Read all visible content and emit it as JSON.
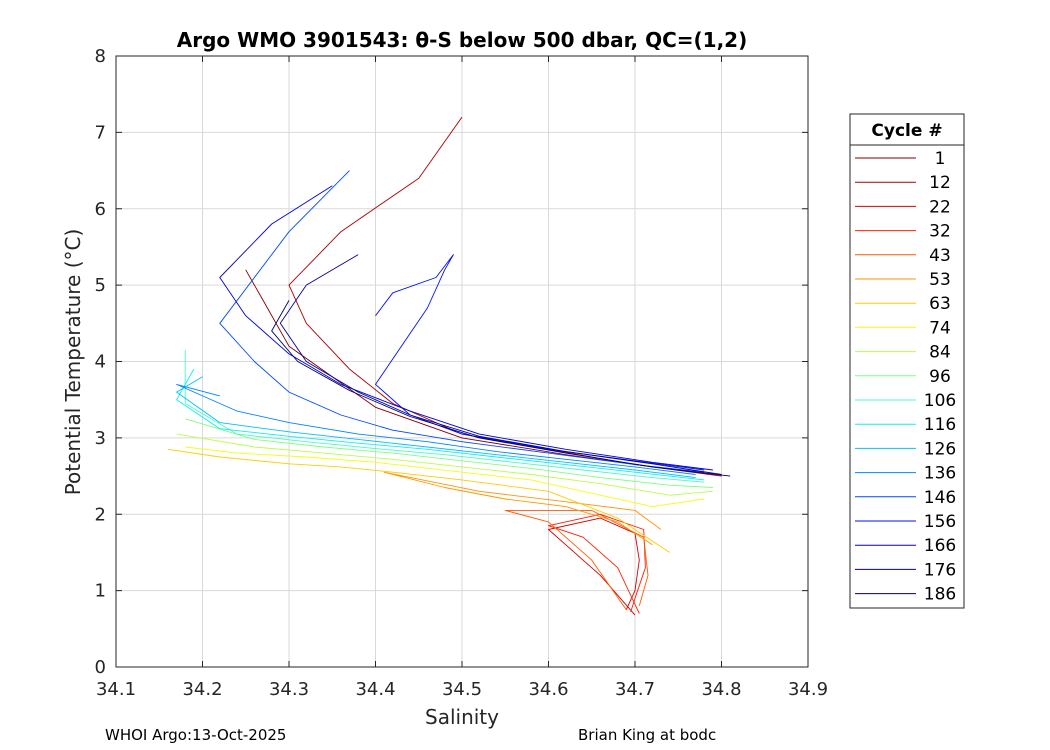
{
  "chart_data": {
    "type": "line",
    "title": "Argo WMO 3901543: θ-S below 500 dbar,  QC=(1,2)",
    "xlabel": "Salinity",
    "ylabel": "Potential Temperature (°C)",
    "xlim": [
      34.1,
      34.9
    ],
    "ylim": [
      0,
      8
    ],
    "xticks": [
      "34.1",
      "34.2",
      "34.3",
      "34.4",
      "34.5",
      "34.6",
      "34.7",
      "34.8",
      "34.9"
    ],
    "yticks": [
      "0",
      "1",
      "2",
      "3",
      "4",
      "5",
      "6",
      "7",
      "8"
    ],
    "grid": true,
    "colormap": "jet",
    "legend": {
      "title": "Cycle #",
      "location": "outside-right",
      "entries": [
        "1",
        "12",
        "22",
        "32",
        "43",
        "53",
        "63",
        "74",
        "84",
        "96",
        "106",
        "116",
        "126",
        "136",
        "146",
        "156",
        "166",
        "176",
        "186"
      ],
      "colors": [
        "#800000",
        "#aa0000",
        "#d40000",
        "#ff1f00",
        "#ff5a00",
        "#ff9600",
        "#ffcc00",
        "#f2ff0d",
        "#b8ff47",
        "#7cff83",
        "#42ffbd",
        "#08f0f7",
        "#00c0ff",
        "#0084ff",
        "#0048ff",
        "#0010ff",
        "#0000d6",
        "#00009f",
        "#000068"
      ]
    },
    "series": [
      {
        "name": "1",
        "color": "#800000",
        "x": [
          34.8,
          34.72,
          34.62,
          34.5,
          34.4,
          34.35,
          34.3,
          34.27,
          34.25
        ],
        "y": [
          2.5,
          2.62,
          2.78,
          3.0,
          3.4,
          3.8,
          4.2,
          4.8,
          5.2
        ]
      },
      {
        "name": "12",
        "color": "#aa0000",
        "x": [
          34.79,
          34.7,
          34.6,
          34.5,
          34.42,
          34.37,
          34.32,
          34.3,
          34.36,
          34.45,
          34.5
        ],
        "y": [
          2.52,
          2.65,
          2.85,
          3.05,
          3.45,
          3.9,
          4.5,
          5.0,
          5.7,
          6.4,
          7.2
        ]
      },
      {
        "name": "22",
        "color": "#d40000",
        "x": [
          34.7,
          34.66,
          34.62,
          34.6,
          34.66,
          34.7,
          34.705,
          34.7,
          34.69
        ],
        "y": [
          0.68,
          1.2,
          1.6,
          1.8,
          1.95,
          1.75,
          1.4,
          1.0,
          0.75
        ]
      },
      {
        "name": "32",
        "color": "#ff1f00",
        "x": [
          34.705,
          34.68,
          34.64,
          34.6,
          34.66,
          34.71,
          34.712,
          34.7,
          34.695
        ],
        "y": [
          0.7,
          1.3,
          1.7,
          1.85,
          2.0,
          1.8,
          1.3,
          0.9,
          0.72
        ]
      },
      {
        "name": "43",
        "color": "#ff5a00",
        "x": [
          34.69,
          34.65,
          34.6,
          34.55,
          34.65,
          34.71,
          34.715,
          34.705
        ],
        "y": [
          0.75,
          1.4,
          1.9,
          2.05,
          2.05,
          1.7,
          1.2,
          0.8
        ]
      },
      {
        "name": "53",
        "color": "#ff9600",
        "x": [
          34.72,
          34.68,
          34.62,
          34.55,
          34.48,
          34.41,
          34.52,
          34.63,
          34.7,
          34.73
        ],
        "y": [
          1.6,
          1.9,
          2.1,
          2.2,
          2.35,
          2.55,
          2.3,
          2.15,
          2.05,
          1.8
        ]
      },
      {
        "name": "63",
        "color": "#ffcc00",
        "x": [
          34.74,
          34.68,
          34.6,
          34.5,
          34.42,
          34.36,
          34.3,
          34.22,
          34.16
        ],
        "y": [
          1.5,
          1.95,
          2.3,
          2.45,
          2.55,
          2.62,
          2.66,
          2.75,
          2.85
        ]
      },
      {
        "name": "74",
        "color": "#f2ff0d",
        "x": [
          34.78,
          34.72,
          34.66,
          34.58,
          34.5,
          34.4,
          34.32,
          34.24,
          34.18
        ],
        "y": [
          2.2,
          2.1,
          2.25,
          2.45,
          2.55,
          2.68,
          2.75,
          2.8,
          2.88
        ]
      },
      {
        "name": "84",
        "color": "#b8ff47",
        "x": [
          34.79,
          34.74,
          34.66,
          34.58,
          34.5,
          34.42,
          34.34,
          34.26,
          34.17
        ],
        "y": [
          2.3,
          2.25,
          2.4,
          2.52,
          2.62,
          2.72,
          2.8,
          2.88,
          3.05
        ]
      },
      {
        "name": "96",
        "color": "#7cff83",
        "x": [
          34.79,
          34.74,
          34.66,
          34.58,
          34.5,
          34.42,
          34.34,
          34.26,
          34.18
        ],
        "y": [
          2.35,
          2.38,
          2.48,
          2.6,
          2.7,
          2.8,
          2.88,
          2.98,
          3.25
        ]
      },
      {
        "name": "106",
        "color": "#42ffbd",
        "x": [
          34.78,
          34.72,
          34.64,
          34.56,
          34.48,
          34.4,
          34.32,
          34.24,
          34.18,
          34.18
        ],
        "y": [
          2.42,
          2.48,
          2.58,
          2.68,
          2.78,
          2.86,
          2.95,
          3.05,
          3.45,
          4.15
        ]
      },
      {
        "name": "116",
        "color": "#08f0f7",
        "x": [
          34.78,
          34.7,
          34.62,
          34.54,
          34.46,
          34.38,
          34.3,
          34.22,
          34.17,
          34.19
        ],
        "y": [
          2.45,
          2.55,
          2.65,
          2.75,
          2.85,
          2.93,
          3.02,
          3.12,
          3.5,
          3.9
        ]
      },
      {
        "name": "126",
        "color": "#00c0ff",
        "x": [
          34.77,
          34.7,
          34.62,
          34.54,
          34.46,
          34.38,
          34.3,
          34.22,
          34.17,
          34.2
        ],
        "y": [
          2.48,
          2.58,
          2.68,
          2.78,
          2.88,
          2.98,
          3.08,
          3.2,
          3.6,
          3.8
        ]
      },
      {
        "name": "136",
        "color": "#0084ff",
        "x": [
          34.77,
          34.7,
          34.62,
          34.54,
          34.46,
          34.38,
          34.3,
          34.24,
          34.17,
          34.22
        ],
        "y": [
          2.52,
          2.62,
          2.72,
          2.82,
          2.95,
          3.05,
          3.2,
          3.35,
          3.7,
          3.55
        ]
      },
      {
        "name": "146",
        "color": "#0048ff",
        "x": [
          34.78,
          34.7,
          34.6,
          34.5,
          34.42,
          34.36,
          34.3,
          34.26,
          34.22,
          34.3,
          34.37
        ],
        "y": [
          2.55,
          2.65,
          2.8,
          2.95,
          3.1,
          3.3,
          3.6,
          4.0,
          4.5,
          5.7,
          6.5
        ]
      },
      {
        "name": "156",
        "color": "#0010ff",
        "x": [
          34.78,
          34.7,
          34.6,
          34.5,
          34.44,
          34.4,
          34.43,
          34.46,
          34.48,
          34.49,
          34.47,
          34.42,
          34.4
        ],
        "y": [
          2.58,
          2.7,
          2.85,
          3.05,
          3.3,
          3.7,
          4.2,
          4.7,
          5.2,
          5.4,
          5.1,
          4.9,
          4.6
        ]
      },
      {
        "name": "166",
        "color": "#0000d6",
        "x": [
          34.79,
          34.72,
          34.62,
          34.52,
          34.44,
          34.36,
          34.3,
          34.25,
          34.22,
          34.28,
          34.35
        ],
        "y": [
          2.58,
          2.68,
          2.85,
          3.05,
          3.35,
          3.7,
          4.1,
          4.6,
          5.1,
          5.8,
          6.3
        ]
      },
      {
        "name": "176",
        "color": "#00009f",
        "x": [
          34.8,
          34.72,
          34.62,
          34.52,
          34.44,
          34.38,
          34.32,
          34.29,
          34.32,
          34.38
        ],
        "y": [
          2.52,
          2.66,
          2.82,
          3.02,
          3.3,
          3.6,
          4.0,
          4.5,
          5.0,
          5.4
        ]
      },
      {
        "name": "186",
        "color": "#000068",
        "x": [
          34.81,
          34.72,
          34.62,
          34.52,
          34.44,
          34.37,
          34.31,
          34.28,
          34.3
        ],
        "y": [
          2.5,
          2.62,
          2.8,
          3.0,
          3.28,
          3.62,
          4.0,
          4.4,
          4.8
        ]
      }
    ]
  },
  "footer": {
    "left": "WHOI Argo:13-Oct-2025",
    "right": "Brian King at bodc"
  }
}
